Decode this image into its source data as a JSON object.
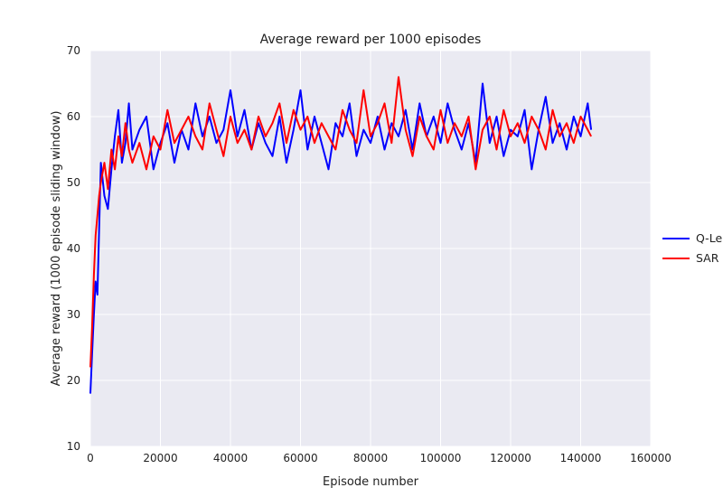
{
  "chart_data": {
    "type": "line",
    "title": "Average reward per 1000 episodes",
    "xlabel": "Episode number",
    "ylabel": "Average reward (1000 episode sliding window)",
    "xlim": [
      0,
      160000
    ],
    "ylim": [
      10,
      70
    ],
    "xticks": [
      0,
      20000,
      40000,
      60000,
      80000,
      100000,
      120000,
      140000,
      160000
    ],
    "yticks": [
      10,
      20,
      30,
      40,
      50,
      60,
      70
    ],
    "grid": true,
    "legend_position": "right, outside plot area",
    "background_color": "#eaeaf2",
    "series": [
      {
        "name": "Q-Le",
        "color": "#0000ff",
        "x": [
          0,
          500,
          1000,
          1500,
          2000,
          2500,
          3000,
          4000,
          5000,
          6000,
          7000,
          8000,
          9000,
          10000,
          11000,
          12000,
          14000,
          16000,
          18000,
          20000,
          22000,
          24000,
          26000,
          28000,
          30000,
          32000,
          34000,
          36000,
          38000,
          40000,
          42000,
          44000,
          46000,
          48000,
          50000,
          52000,
          54000,
          56000,
          58000,
          60000,
          62000,
          64000,
          66000,
          68000,
          70000,
          72000,
          74000,
          76000,
          78000,
          80000,
          82000,
          84000,
          86000,
          88000,
          90000,
          92000,
          94000,
          96000,
          98000,
          100000,
          102000,
          104000,
          106000,
          108000,
          110000,
          112000,
          114000,
          116000,
          118000,
          120000,
          122000,
          124000,
          126000,
          128000,
          130000,
          132000,
          134000,
          136000,
          138000,
          140000,
          142000,
          143000
        ],
        "y": [
          18,
          24,
          30,
          35,
          33,
          43,
          53,
          48,
          46,
          52,
          57,
          61,
          53,
          56,
          62,
          55,
          58,
          60,
          52,
          56,
          59,
          53,
          58,
          55,
          62,
          57,
          60,
          56,
          58,
          64,
          57,
          61,
          55,
          59,
          56,
          54,
          60,
          53,
          58,
          64,
          55,
          60,
          56,
          52,
          59,
          57,
          62,
          54,
          58,
          56,
          60,
          55,
          59,
          57,
          61,
          55,
          62,
          57,
          60,
          56,
          62,
          58,
          55,
          59,
          53,
          65,
          56,
          60,
          54,
          58,
          57,
          61,
          52,
          58,
          63,
          56,
          59,
          55,
          60,
          57,
          62,
          58
        ]
      },
      {
        "name": "SAR",
        "color": "#ff0000",
        "x": [
          0,
          500,
          1000,
          1500,
          2000,
          2500,
          3000,
          4000,
          5000,
          6000,
          7000,
          8000,
          9000,
          10000,
          11000,
          12000,
          14000,
          16000,
          18000,
          20000,
          22000,
          24000,
          26000,
          28000,
          30000,
          32000,
          34000,
          36000,
          38000,
          40000,
          42000,
          44000,
          46000,
          48000,
          50000,
          52000,
          54000,
          56000,
          58000,
          60000,
          62000,
          64000,
          66000,
          68000,
          70000,
          72000,
          74000,
          76000,
          78000,
          80000,
          82000,
          84000,
          86000,
          88000,
          90000,
          92000,
          94000,
          96000,
          98000,
          100000,
          102000,
          104000,
          106000,
          108000,
          110000,
          112000,
          114000,
          116000,
          118000,
          120000,
          122000,
          124000,
          126000,
          128000,
          130000,
          132000,
          134000,
          136000,
          138000,
          140000,
          142000,
          143000
        ],
        "y": [
          22,
          28,
          36,
          42,
          45,
          48,
          50,
          53,
          49,
          55,
          52,
          57,
          54,
          59,
          55,
          53,
          56,
          52,
          57,
          55,
          61,
          56,
          58,
          60,
          57,
          55,
          62,
          58,
          54,
          60,
          56,
          58,
          55,
          60,
          57,
          59,
          62,
          56,
          61,
          58,
          60,
          56,
          59,
          57,
          55,
          61,
          58,
          56,
          64,
          57,
          59,
          62,
          56,
          66,
          58,
          54,
          60,
          57,
          55,
          61,
          56,
          59,
          57,
          60,
          52,
          58,
          60,
          55,
          61,
          57,
          59,
          56,
          60,
          58,
          55,
          61,
          57,
          59,
          56,
          60,
          58,
          57
        ]
      }
    ]
  }
}
